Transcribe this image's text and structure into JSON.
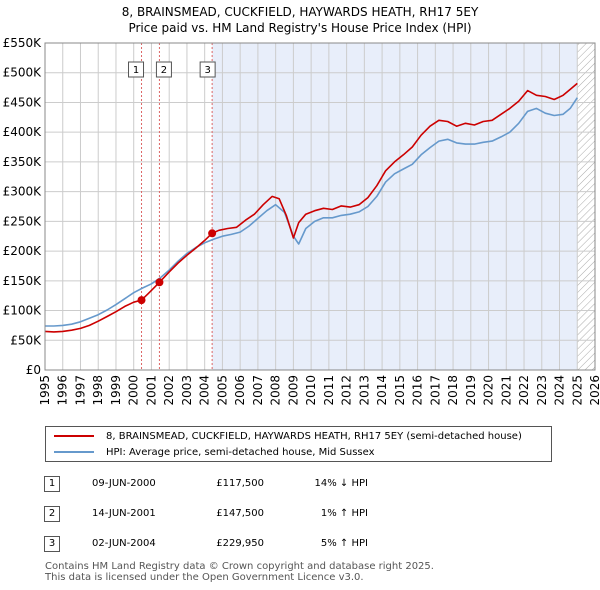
{
  "title_line1": "8, BRAINSMEAD, CUCKFIELD, HAYWARDS HEATH, RH17 5EY",
  "title_line2": "Price paid vs. HM Land Registry's House Price Index (HPI)",
  "colors": {
    "property": "#cc0000",
    "hpi": "#6699cc",
    "shade": "#e8eefa",
    "grid": "#cccccc",
    "vline": "#dd6666"
  },
  "chart_data": {
    "type": "line",
    "title": "Price paid vs. HM Land Registry's House Price Index (HPI)",
    "xlabel": "",
    "ylabel": "",
    "xlim": [
      1995,
      2026
    ],
    "ylim": [
      0,
      550000
    ],
    "x_ticks": [
      "1995",
      "1996",
      "1997",
      "1998",
      "1999",
      "2000",
      "2001",
      "2002",
      "2003",
      "2004",
      "2005",
      "2006",
      "2007",
      "2008",
      "2009",
      "2010",
      "2011",
      "2012",
      "2013",
      "2014",
      "2015",
      "2016",
      "2017",
      "2018",
      "2019",
      "2020",
      "2021",
      "2022",
      "2023",
      "2024",
      "2025",
      "2026"
    ],
    "y_ticks": [
      {
        "value": 0,
        "label": "£0"
      },
      {
        "value": 50000,
        "label": "£50K"
      },
      {
        "value": 100000,
        "label": "£100K"
      },
      {
        "value": 150000,
        "label": "£150K"
      },
      {
        "value": 200000,
        "label": "£200K"
      },
      {
        "value": 250000,
        "label": "£250K"
      },
      {
        "value": 300000,
        "label": "£300K"
      },
      {
        "value": 350000,
        "label": "£350K"
      },
      {
        "value": 400000,
        "label": "£400K"
      },
      {
        "value": 450000,
        "label": "£450K"
      },
      {
        "value": 500000,
        "label": "£500K"
      },
      {
        "value": 550000,
        "label": "£550K"
      }
    ],
    "shaded_from": 2004.42,
    "hatched_from": 2025.0,
    "series": [
      {
        "name": "8, BRAINSMEAD, CUCKFIELD, HAYWARDS HEATH, RH17 5EY (semi-detached house)",
        "color": "#cc0000",
        "x": [
          1995.0,
          1995.5,
          1996.0,
          1996.5,
          1997.0,
          1997.5,
          1998.0,
          1998.5,
          1999.0,
          1999.5,
          2000.0,
          2000.44,
          2000.8,
          2001.2,
          2001.45,
          2002.0,
          2002.5,
          2003.0,
          2003.5,
          2004.0,
          2004.42,
          2004.8,
          2005.3,
          2005.8,
          2006.3,
          2006.8,
          2007.3,
          2007.8,
          2008.2,
          2008.6,
          2009.0,
          2009.3,
          2009.7,
          2010.2,
          2010.7,
          2011.2,
          2011.7,
          2012.2,
          2012.7,
          2013.2,
          2013.7,
          2014.2,
          2014.7,
          2015.2,
          2015.7,
          2016.2,
          2016.7,
          2017.2,
          2017.7,
          2018.2,
          2018.7,
          2019.2,
          2019.7,
          2020.2,
          2020.7,
          2021.2,
          2021.7,
          2022.2,
          2022.7,
          2023.2,
          2023.7,
          2024.2,
          2024.6,
          2025.0
        ],
        "values": [
          65000,
          64000,
          65000,
          67000,
          70000,
          75000,
          82000,
          90000,
          98000,
          107000,
          114000,
          117500,
          128000,
          140000,
          147500,
          165000,
          180000,
          193000,
          205000,
          218000,
          229950,
          235000,
          238000,
          240000,
          252000,
          262000,
          278000,
          292000,
          288000,
          260000,
          222000,
          248000,
          262000,
          268000,
          272000,
          270000,
          276000,
          274000,
          278000,
          290000,
          310000,
          335000,
          350000,
          362000,
          375000,
          395000,
          410000,
          420000,
          418000,
          410000,
          415000,
          412000,
          418000,
          420000,
          430000,
          440000,
          452000,
          470000,
          462000,
          460000,
          455000,
          462000,
          472000,
          482000
        ]
      },
      {
        "name": "HPI: Average price, semi-detached house, Mid Sussex",
        "color": "#6699cc",
        "x": [
          1995.0,
          1995.5,
          1996.0,
          1996.5,
          1997.0,
          1997.5,
          1998.0,
          1998.5,
          1999.0,
          1999.5,
          2000.0,
          2000.5,
          2001.0,
          2001.5,
          2002.0,
          2002.5,
          2003.0,
          2003.5,
          2004.0,
          2004.5,
          2005.0,
          2005.5,
          2006.0,
          2006.5,
          2007.0,
          2007.5,
          2008.0,
          2008.5,
          2009.0,
          2009.3,
          2009.7,
          2010.2,
          2010.7,
          2011.2,
          2011.7,
          2012.2,
          2012.7,
          2013.2,
          2013.7,
          2014.2,
          2014.7,
          2015.2,
          2015.7,
          2016.2,
          2016.7,
          2017.2,
          2017.7,
          2018.2,
          2018.7,
          2019.2,
          2019.7,
          2020.2,
          2020.7,
          2021.2,
          2021.7,
          2022.2,
          2022.7,
          2023.2,
          2023.7,
          2024.2,
          2024.6,
          2025.0
        ],
        "values": [
          74000,
          74000,
          75000,
          77000,
          81000,
          87000,
          93000,
          101000,
          110000,
          120000,
          130000,
          138000,
          145000,
          155000,
          168000,
          183000,
          196000,
          206000,
          214000,
          220000,
          225000,
          228000,
          232000,
          242000,
          255000,
          268000,
          278000,
          265000,
          225000,
          212000,
          238000,
          250000,
          256000,
          256000,
          260000,
          262000,
          266000,
          275000,
          292000,
          316000,
          330000,
          338000,
          346000,
          362000,
          374000,
          385000,
          388000,
          382000,
          380000,
          380000,
          383000,
          385000,
          392000,
          400000,
          415000,
          435000,
          440000,
          432000,
          428000,
          430000,
          440000,
          458000
        ]
      }
    ],
    "sales": [
      {
        "marker": "1",
        "x": 2000.44,
        "price": 117500
      },
      {
        "marker": "2",
        "x": 2001.45,
        "price": 147500
      },
      {
        "marker": "3",
        "x": 2004.42,
        "price": 229950
      }
    ]
  },
  "legend": {
    "property_label": "8, BRAINSMEAD, CUCKFIELD, HAYWARDS HEATH, RH17 5EY (semi-detached house)",
    "hpi_label": "HPI: Average price, semi-detached house, Mid Sussex"
  },
  "sales_table": [
    {
      "num": "1",
      "date": "09-JUN-2000",
      "price": "£117,500",
      "hpi": "14% ↓ HPI"
    },
    {
      "num": "2",
      "date": "14-JUN-2001",
      "price": "£147,500",
      "hpi": "1% ↑ HPI"
    },
    {
      "num": "3",
      "date": "02-JUN-2004",
      "price": "£229,950",
      "hpi": "5% ↑ HPI"
    }
  ],
  "footer_line1": "Contains HM Land Registry data © Crown copyright and database right 2025.",
  "footer_line2": "This data is licensed under the Open Government Licence v3.0."
}
